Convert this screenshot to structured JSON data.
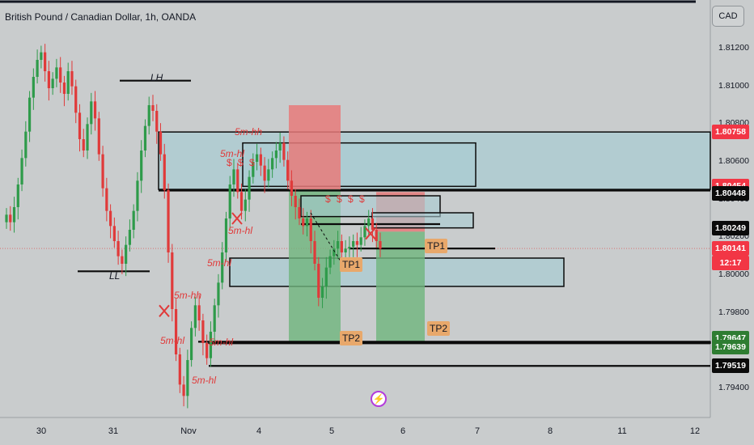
{
  "header": {
    "title": "British Pound / Canadian Dollar, 1h, OANDA",
    "currency_button": "CAD"
  },
  "colors": {
    "background": "#c9cccd",
    "up_candle": "#2e9b4a",
    "down_candle": "#e03a3a",
    "zone_blue": "#a9ccd2",
    "zone_red": "#e87a7a",
    "zone_green": "#6fb57d",
    "tag_red": "#f23645",
    "tag_green": "#2e7d32",
    "tag_black": "#0b0b0b",
    "tp_badge": "#e8a86b",
    "bolt": "#b33bdc"
  },
  "price_axis": {
    "labels": [
      "1.81200",
      "1.81000",
      "1.80800",
      "1.80600",
      "1.80400",
      "1.80200",
      "1.80000",
      "1.79800",
      "1.79600",
      "1.79400"
    ],
    "tags": [
      {
        "value": "1.80758",
        "style": "red"
      },
      {
        "value": "1.80454",
        "style": "red"
      },
      {
        "value": "1.80448",
        "style": "black"
      },
      {
        "value": "1.80249",
        "style": "black"
      },
      {
        "value": "1.80141",
        "style": "red",
        "countdown": "12:17"
      },
      {
        "value": "1.79647",
        "style": "green"
      },
      {
        "value": "1.79639",
        "style": "green"
      },
      {
        "value": "1.79519",
        "style": "black"
      }
    ]
  },
  "time_axis": {
    "labels": [
      "30",
      "31",
      "Nov",
      "4",
      "5",
      "6",
      "7",
      "8",
      "11",
      "12"
    ]
  },
  "annotations": {
    "lh": "LH",
    "ll": "LL",
    "structure": [
      "5m-hh",
      "5m-hl",
      "5m-hl",
      "5m-hl",
      "5m-hh",
      "5m-hl",
      "5m-hl",
      "5m-hl"
    ],
    "dollars": [
      "$ $ $",
      "$ $ $ $"
    ],
    "tp1": "TP1",
    "tp2": "TP2"
  },
  "chart_data": {
    "type": "candlestick",
    "title": "British Pound / Canadian Dollar, 1h, OANDA",
    "x_categories": [
      "30",
      "31",
      "Nov",
      "4",
      "5",
      "6",
      "7",
      "8",
      "11",
      "12"
    ],
    "ylim": [
      1.793,
      1.814
    ],
    "y_ticks": [
      1.812,
      1.81,
      1.808,
      1.806,
      1.804,
      1.802,
      1.8,
      1.798,
      1.796,
      1.794
    ],
    "last_price": 1.80141,
    "key_levels": [
      1.80758,
      1.80454,
      1.80448,
      1.80249,
      1.79647,
      1.79639,
      1.79519
    ],
    "closes": [
      1.8032,
      1.8028,
      1.8036,
      1.8048,
      1.8062,
      1.8076,
      1.8094,
      1.8105,
      1.8114,
      1.8118,
      1.8108,
      1.8099,
      1.8104,
      1.811,
      1.8102,
      1.8096,
      1.8108,
      1.81,
      1.8086,
      1.8072,
      1.8066,
      1.808,
      1.8092,
      1.8083,
      1.8064,
      1.8046,
      1.8034,
      1.8026,
      1.8018,
      1.801,
      1.8006,
      1.8016,
      1.8024,
      1.8034,
      1.805,
      1.8066,
      1.8079,
      1.809,
      1.8087,
      1.8076,
      1.8064,
      1.8045,
      1.8012,
      1.7982,
      1.7958,
      1.7942,
      1.7936,
      1.7955,
      1.7972,
      1.7984,
      1.7976,
      1.7964,
      1.7956,
      1.797,
      1.7984,
      1.7996,
      1.8012,
      1.803,
      1.8048,
      1.8056,
      1.8044,
      1.8034,
      1.804,
      1.8052,
      1.806,
      1.8064,
      1.8058,
      1.805,
      1.8056,
      1.8062,
      1.8066,
      1.807,
      1.8061,
      1.805,
      1.8042,
      1.8036,
      1.803,
      1.8026,
      1.803,
      1.8018,
      1.8006,
      1.7988,
      1.7994,
      1.8004,
      1.801,
      1.8014,
      1.8018,
      1.8012,
      1.8014,
      1.8015,
      1.8018,
      1.8016,
      1.802,
      1.8026,
      1.803,
      1.8024,
      1.8018,
      1.8014
    ]
  }
}
